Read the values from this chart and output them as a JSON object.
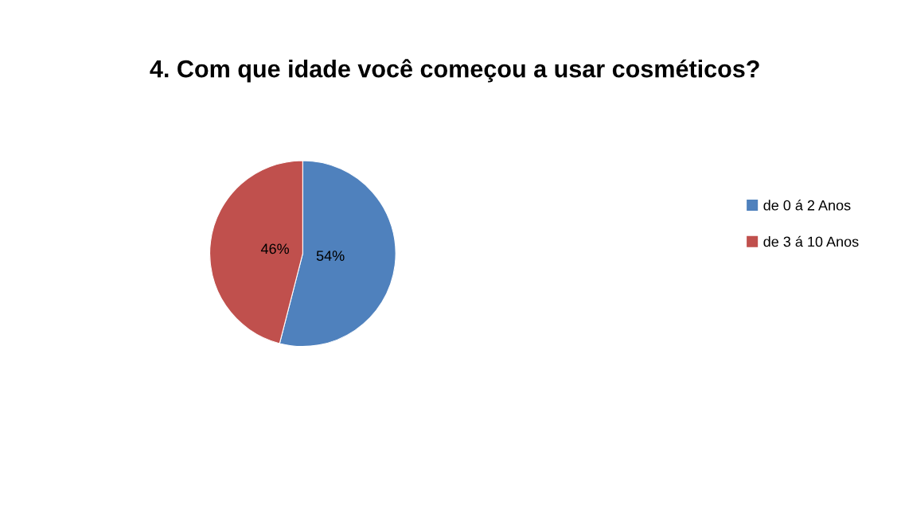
{
  "chart_data": {
    "type": "pie",
    "title": "4. Com que idade você começou a usar cosméticos?",
    "categories": [
      "de 0 á 2 Anos",
      "de 3 á 10 Anos"
    ],
    "values": [
      54,
      46
    ],
    "colors": [
      "#4f81bd",
      "#c0504d"
    ],
    "value_labels": [
      "54%",
      "46%"
    ],
    "legend": "right"
  }
}
